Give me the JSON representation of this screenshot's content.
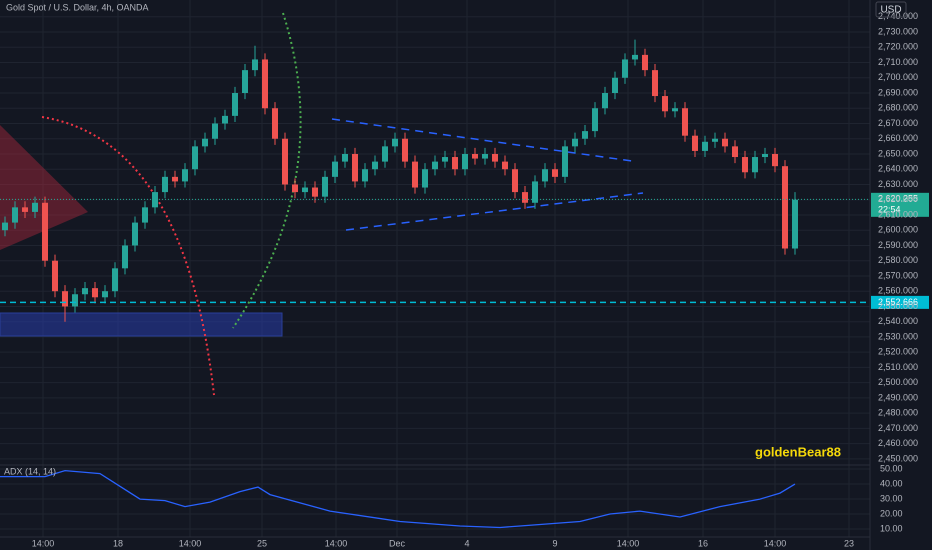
{
  "chart_data": {
    "type": "candlestick",
    "title": "Gold Spot / U.S. Dollar, 4h, OANDA",
    "currency": "USD",
    "watermark": "goldenBear88",
    "up_color": "#26a69a",
    "down_color": "#ef5350",
    "open": [
      2600,
      2605,
      2615,
      2612,
      2618,
      2580,
      2560,
      2550,
      2558,
      2562,
      2556,
      2560,
      2575,
      2590,
      2605,
      2615,
      2625,
      2635,
      2632,
      2640,
      2655,
      2660,
      2670,
      2675,
      2690,
      2705,
      2712,
      2680,
      2660,
      2630,
      2625,
      2628,
      2622,
      2635,
      2645,
      2650,
      2632,
      2640,
      2645,
      2655,
      2660,
      2645,
      2628,
      2640,
      2645,
      2648,
      2640,
      2650,
      2647,
      2650,
      2645,
      2640,
      2625,
      2618,
      2632,
      2640,
      2635,
      2655,
      2660,
      2665,
      2680,
      2690,
      2700,
      2712,
      2715,
      2705,
      2688,
      2678,
      2680,
      2662,
      2652,
      2658,
      2660,
      2655,
      2648,
      2638,
      2648,
      2650,
      2642,
      2588
    ],
    "high": [
      2609,
      2619,
      2619,
      2622,
      2622,
      2584,
      2564,
      2562,
      2566,
      2566,
      2564,
      2579,
      2594,
      2609,
      2619,
      2629,
      2639,
      2639,
      2644,
      2659,
      2664,
      2674,
      2679,
      2694,
      2709,
      2721,
      2716,
      2684,
      2664,
      2634,
      2632,
      2632,
      2639,
      2649,
      2654,
      2654,
      2644,
      2649,
      2659,
      2664,
      2664,
      2649,
      2644,
      2649,
      2652,
      2652,
      2654,
      2654,
      2654,
      2654,
      2649,
      2644,
      2629,
      2636,
      2644,
      2644,
      2659,
      2664,
      2669,
      2684,
      2694,
      2704,
      2716,
      2725,
      2719,
      2709,
      2692,
      2684,
      2684,
      2666,
      2662,
      2664,
      2664,
      2659,
      2652,
      2652,
      2654,
      2654,
      2646,
      2625
    ],
    "low": [
      2596,
      2601,
      2608,
      2608,
      2576,
      2556,
      2540,
      2546,
      2554,
      2552,
      2552,
      2556,
      2571,
      2586,
      2601,
      2611,
      2621,
      2628,
      2628,
      2636,
      2651,
      2656,
      2666,
      2671,
      2686,
      2701,
      2676,
      2656,
      2626,
      2621,
      2621,
      2618,
      2618,
      2631,
      2641,
      2628,
      2628,
      2636,
      2641,
      2651,
      2641,
      2624,
      2624,
      2636,
      2641,
      2636,
      2636,
      2643,
      2643,
      2641,
      2636,
      2621,
      2614,
      2614,
      2628,
      2631,
      2631,
      2651,
      2656,
      2661,
      2676,
      2686,
      2696,
      2708,
      2701,
      2684,
      2674,
      2674,
      2658,
      2648,
      2648,
      2654,
      2651,
      2644,
      2634,
      2634,
      2644,
      2638,
      2584,
      2584
    ],
    "close": [
      2605,
      2615,
      2612,
      2618,
      2580,
      2560,
      2550,
      2558,
      2562,
      2556,
      2560,
      2575,
      2590,
      2605,
      2615,
      2625,
      2635,
      2632,
      2640,
      2655,
      2660,
      2670,
      2675,
      2690,
      2705,
      2712,
      2680,
      2660,
      2630,
      2625,
      2628,
      2622,
      2635,
      2645,
      2650,
      2632,
      2640,
      2645,
      2655,
      2660,
      2645,
      2628,
      2640,
      2645,
      2648,
      2640,
      2650,
      2647,
      2650,
      2645,
      2640,
      2625,
      2618,
      2632,
      2640,
      2635,
      2655,
      2660,
      2665,
      2680,
      2690,
      2700,
      2712,
      2715,
      2705,
      2688,
      2678,
      2680,
      2662,
      2652,
      2658,
      2660,
      2655,
      2648,
      2638,
      2648,
      2650,
      2642,
      2588,
      2620
    ],
    "xlim": [
      -0.5,
      86.5
    ],
    "xticks": [
      {
        "value": 3.8,
        "label": "14:00"
      },
      {
        "value": 11.3,
        "label": "18"
      },
      {
        "value": 18.5,
        "label": "14:00"
      },
      {
        "value": 25.7,
        "label": "25"
      },
      {
        "value": 33.1,
        "label": "14:00"
      },
      {
        "value": 39.2,
        "label": "Dec"
      },
      {
        "value": 46.2,
        "label": "4"
      },
      {
        "value": 55,
        "label": "9"
      },
      {
        "value": 62.3,
        "label": "14:00"
      },
      {
        "value": 69.8,
        "label": "16"
      },
      {
        "value": 77,
        "label": "14:00"
      },
      {
        "value": 84.4,
        "label": "23"
      }
    ],
    "ylim": [
      2446,
      2751
    ],
    "yticks": [
      {
        "value": 2450,
        "label": "2,450.000"
      },
      {
        "value": 2460,
        "label": "2,460.000"
      },
      {
        "value": 2470,
        "label": "2,470.000"
      },
      {
        "value": 2480,
        "label": "2,480.000"
      },
      {
        "value": 2490,
        "label": "2,490.000"
      },
      {
        "value": 2500,
        "label": "2,500.000"
      },
      {
        "value": 2510,
        "label": "2,510.000"
      },
      {
        "value": 2520,
        "label": "2,520.000"
      },
      {
        "value": 2530,
        "label": "2,530.000"
      },
      {
        "value": 2540,
        "label": "2,540.000"
      },
      {
        "value": 2550,
        "label": "2,550.000"
      },
      {
        "value": 2560,
        "label": "2,560.000"
      },
      {
        "value": 2570,
        "label": "2,570.000"
      },
      {
        "value": 2580,
        "label": "2,580.000"
      },
      {
        "value": 2590,
        "label": "2,590.000"
      },
      {
        "value": 2600,
        "label": "2,600.000"
      },
      {
        "value": 2610,
        "label": "2,610.000"
      },
      {
        "value": 2620,
        "label": "2,620.000"
      },
      {
        "value": 2630,
        "label": "2,630.000"
      },
      {
        "value": 2640,
        "label": "2,640.000"
      },
      {
        "value": 2650,
        "label": "2,650.000"
      },
      {
        "value": 2660,
        "label": "2,660.000"
      },
      {
        "value": 2670,
        "label": "2,670.000"
      },
      {
        "value": 2680,
        "label": "2,680.000"
      },
      {
        "value": 2690,
        "label": "2,690.000"
      },
      {
        "value": 2700,
        "label": "2,700.000"
      },
      {
        "value": 2710,
        "label": "2,710.000"
      },
      {
        "value": 2720,
        "label": "2,720.000"
      },
      {
        "value": 2730,
        "label": "2,730.000"
      },
      {
        "value": 2740,
        "label": "2,740.000"
      }
    ],
    "grid": true,
    "price_lines": [
      {
        "value": 2620.255,
        "label": "2,620.255",
        "countdown": "22:54",
        "color": "#22ab94"
      },
      {
        "value": 2552.666,
        "label": "2,552.666",
        "color": "#00bcd4"
      }
    ],
    "indicator": {
      "type": "line",
      "name": "ADX (14, 14)",
      "color": "#2962ff",
      "x": [
        -0.5,
        4,
        6,
        9.5,
        13.5,
        16,
        18,
        20.5,
        23.5,
        25.3,
        26.5,
        32.5,
        39.5,
        45.5,
        49.5,
        51.5,
        57.5,
        60.5,
        63.5,
        67.5,
        71.5,
        75.5,
        77.5,
        79
      ],
      "values": [
        45,
        45,
        49,
        47,
        30,
        29,
        25,
        28,
        35,
        38,
        33,
        22,
        15,
        12,
        11,
        12,
        15,
        20,
        22,
        18,
        25,
        30,
        34,
        40
      ],
      "y2lim": [
        4.7,
        52.7
      ],
      "y2ticks": [
        {
          "value": 10,
          "label": "10.00"
        },
        {
          "value": 20,
          "label": "20.00"
        },
        {
          "value": 30,
          "label": "30.00"
        },
        {
          "value": 40,
          "label": "40.00"
        },
        {
          "value": 50,
          "label": "50.00"
        }
      ]
    }
  }
}
